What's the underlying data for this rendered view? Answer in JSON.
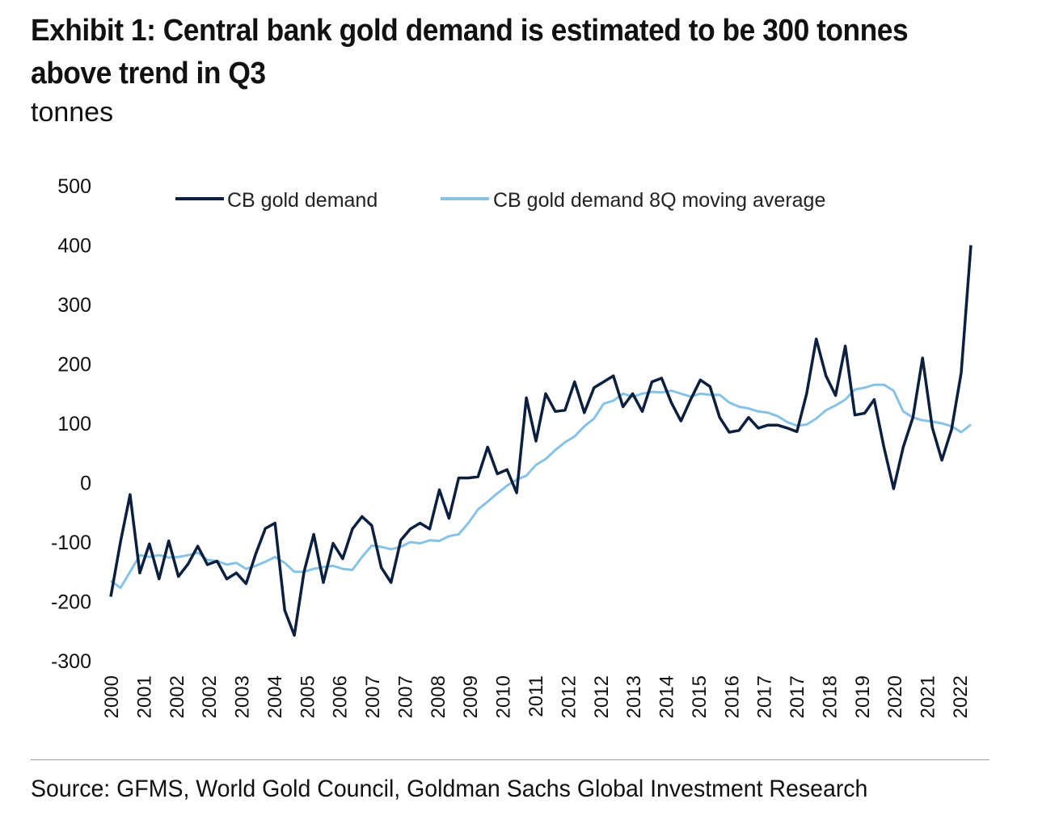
{
  "title": "Exhibit 1: Central bank gold demand is estimated to be 300 tonnes above trend in Q3",
  "subtitle": "tonnes",
  "source": "Source: GFMS, World Gold Council, Goldman Sachs Global Investment Research",
  "colors": {
    "demand": "#0b1f3f",
    "moving_average": "#86c2e6",
    "divider": "#9a9a9a"
  },
  "chart_data": {
    "type": "line",
    "title": "Exhibit 1: Central bank gold demand is estimated to be 300 tonnes above trend in Q3",
    "ylabel": "tonnes",
    "xlabel": "",
    "ylim": [
      -300,
      500
    ],
    "yticks": [
      -300,
      -200,
      -100,
      0,
      100,
      200,
      300,
      400,
      500
    ],
    "xtick_labels": [
      "2000",
      "2001",
      "2002",
      "2002",
      "2003",
      "2004",
      "2005",
      "2006",
      "2007",
      "2007",
      "2008",
      "2009",
      "2010",
      "2011",
      "2012",
      "2012",
      "2013",
      "2014",
      "2015",
      "2016",
      "2017",
      "2017",
      "2018",
      "2019",
      "2020",
      "2021",
      "2022"
    ],
    "grid": false,
    "legend_position": "top",
    "series": [
      {
        "name": "CB gold demand",
        "values": [
          -192,
          -100,
          -20,
          -152,
          -103,
          -162,
          -98,
          -158,
          -137,
          -107,
          -138,
          -132,
          -162,
          -152,
          -170,
          -120,
          -77,
          -68,
          -215,
          -257,
          -150,
          -87,
          -168,
          -102,
          -128,
          -78,
          -57,
          -72,
          -143,
          -168,
          -97,
          -78,
          -68,
          -78,
          -12,
          -60,
          8,
          8,
          10,
          60,
          15,
          22,
          -17,
          143,
          70,
          150,
          120,
          122,
          170,
          118,
          160,
          170,
          180,
          128,
          150,
          120,
          170,
          176,
          135,
          104,
          140,
          173,
          162,
          110,
          85,
          88,
          110,
          92,
          97,
          97,
          92,
          86,
          150,
          242,
          180,
          147,
          230,
          114,
          117,
          140,
          60,
          -10,
          60,
          110,
          210,
          93,
          38,
          90,
          185,
          400
        ]
      },
      {
        "name": "CB gold demand 8Q moving average",
        "values": [
          -165,
          -177,
          -150,
          -122,
          -125,
          -122,
          -126,
          -125,
          -122,
          -118,
          -130,
          -132,
          -138,
          -135,
          -145,
          -140,
          -133,
          -125,
          -135,
          -150,
          -150,
          -145,
          -142,
          -140,
          -145,
          -147,
          -125,
          -106,
          -108,
          -112,
          -108,
          -100,
          -102,
          -97,
          -98,
          -90,
          -87,
          -68,
          -45,
          -32,
          -18,
          -5,
          5,
          12,
          30,
          40,
          55,
          68,
          78,
          95,
          108,
          133,
          138,
          150,
          145,
          150,
          153,
          152,
          155,
          150,
          145,
          150,
          148,
          148,
          135,
          128,
          125,
          120,
          118,
          112,
          102,
          96,
          98,
          108,
          122,
          130,
          140,
          157,
          160,
          165,
          165,
          155,
          120,
          110,
          105,
          103,
          100,
          95,
          85,
          98
        ]
      }
    ]
  }
}
